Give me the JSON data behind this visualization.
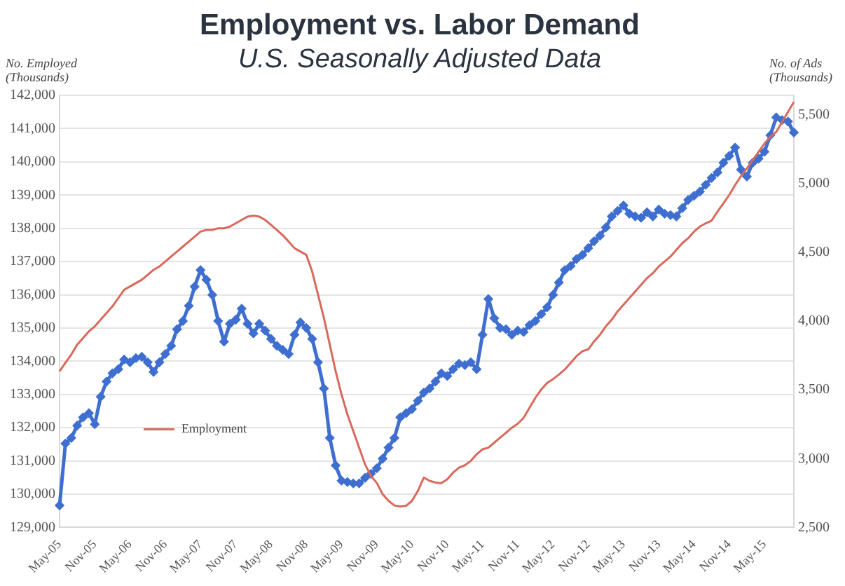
{
  "chart_data": {
    "type": "line",
    "title": "Employment vs. Labor Demand",
    "subtitle": "U.S. Seasonally Adjusted Data",
    "ylabel": "No. Employed (Thousands)",
    "y2label": "No. of Ads (Thousands)",
    "categories": [
      "May-05",
      null,
      null,
      null,
      null,
      null,
      "Nov-05",
      null,
      null,
      null,
      null,
      null,
      "May-06",
      null,
      null,
      null,
      null,
      null,
      "Nov-06",
      null,
      null,
      null,
      null,
      null,
      "May-07",
      null,
      null,
      null,
      null,
      null,
      "Nov-07",
      null,
      null,
      null,
      null,
      null,
      "May-08",
      null,
      null,
      null,
      null,
      null,
      "Nov-08",
      null,
      null,
      null,
      null,
      null,
      "May-09",
      null,
      null,
      null,
      null,
      null,
      "Nov-09",
      null,
      null,
      null,
      null,
      null,
      "May-10",
      null,
      null,
      null,
      null,
      null,
      "Nov-10",
      null,
      null,
      null,
      null,
      null,
      "May-11",
      null,
      null,
      null,
      null,
      null,
      "Nov-11",
      null,
      null,
      null,
      null,
      null,
      "May-12",
      null,
      null,
      null,
      null,
      null,
      "Nov-12",
      null,
      null,
      null,
      null,
      null,
      "May-13",
      null,
      null,
      null,
      null,
      null,
      "Nov-13",
      null,
      null,
      null,
      null,
      null,
      "May-14",
      null,
      null,
      null,
      null,
      null,
      "Nov-14",
      null,
      null,
      null,
      null,
      null,
      "May-15",
      null,
      null,
      null,
      null,
      null
    ],
    "series": [
      {
        "name": "Employment",
        "color": "#d9695b",
        "marker": "none",
        "values": [
          133700,
          133950,
          134200,
          134500,
          134700,
          134900,
          135050,
          135250,
          135450,
          135650,
          135900,
          136150,
          136250,
          136350,
          136450,
          136600,
          136750,
          136850,
          137000,
          137150,
          137300,
          137450,
          137600,
          137750,
          137900,
          137950,
          137950,
          138000,
          138000,
          138050,
          138150,
          138250,
          138350,
          138380,
          138350,
          138250,
          138100,
          137950,
          137790,
          137600,
          137400,
          137300,
          137200,
          136700,
          136000,
          135300,
          134500,
          133700,
          133000,
          132400,
          131900,
          131400,
          130900,
          130550,
          130340,
          130000,
          129800,
          129660,
          129630,
          129650,
          129800,
          130100,
          130500,
          130400,
          130350,
          130330,
          130450,
          130650,
          130800,
          130870,
          131000,
          131200,
          131350,
          131400,
          131550,
          131700,
          131850,
          132000,
          132120,
          132300,
          132600,
          132900,
          133150,
          133350,
          133460,
          133600,
          133750,
          133950,
          134150,
          134300,
          134360,
          134600,
          134800,
          135050,
          135250,
          135500,
          135700,
          135900,
          136100,
          136300,
          136500,
          136650,
          136850,
          137000,
          137150,
          137350,
          137550,
          137700,
          137900,
          138050,
          138150,
          138230,
          138500,
          138750,
          139000,
          139300,
          139570,
          139800,
          140050,
          140300,
          140550,
          140750,
          140900,
          141200,
          141500,
          141800
        ]
      },
      {
        "color": "#3e6fd0",
        "axis": "y2",
        "marker": "diamond",
        "values": [
          2660,
          3110,
          3150,
          3240,
          3300,
          3330,
          3250,
          3450,
          3560,
          3620,
          3650,
          3720,
          3700,
          3730,
          3740,
          3700,
          3630,
          3700,
          3760,
          3820,
          3940,
          4000,
          4110,
          4250,
          4370,
          4300,
          4190,
          4000,
          3850,
          3980,
          4010,
          4090,
          3980,
          3910,
          3980,
          3930,
          3870,
          3820,
          3790,
          3760,
          3900,
          3990,
          3950,
          3870,
          3700,
          3510,
          3150,
          2950,
          2840,
          2830,
          2820,
          2820,
          2860,
          2890,
          2930,
          3000,
          3080,
          3150,
          3300,
          3330,
          3360,
          3420,
          3480,
          3510,
          3560,
          3620,
          3600,
          3650,
          3690,
          3680,
          3700,
          3650,
          3900,
          4160,
          4020,
          3950,
          3940,
          3900,
          3930,
          3920,
          3970,
          4000,
          4050,
          4100,
          4190,
          4280,
          4370,
          4400,
          4450,
          4480,
          4530,
          4580,
          4620,
          4680,
          4760,
          4800,
          4840,
          4780,
          4760,
          4750,
          4790,
          4760,
          4810,
          4780,
          4770,
          4760,
          4820,
          4880,
          4910,
          4940,
          4990,
          5040,
          5080,
          5150,
          5200,
          5260,
          5100,
          5050,
          5150,
          5180,
          5230,
          5350,
          5480,
          5460,
          5450,
          5370
        ]
      }
    ],
    "ylim": [
      129000,
      142000
    ],
    "yticks": [
      {
        "value": 129000,
        "label": "129,000"
      },
      {
        "value": 130000,
        "label": "130,000"
      },
      {
        "value": 131000,
        "label": "131,000"
      },
      {
        "value": 132000,
        "label": "132,000"
      },
      {
        "value": 133000,
        "label": "133,000"
      },
      {
        "value": 134000,
        "label": "134,000"
      },
      {
        "value": 135000,
        "label": "135,000"
      },
      {
        "value": 136000,
        "label": "136,000"
      },
      {
        "value": 137000,
        "label": "137,000"
      },
      {
        "value": 138000,
        "label": "138,000"
      },
      {
        "value": 139000,
        "label": "139,000"
      },
      {
        "value": 140000,
        "label": "140,000"
      },
      {
        "value": 141000,
        "label": "141,000"
      },
      {
        "value": 142000,
        "label": "142,000"
      }
    ],
    "y2lim": [
      2500,
      5640
    ],
    "y2ticks": [
      {
        "value": 2500,
        "label": "2,500"
      },
      {
        "value": 3000,
        "label": "3,000"
      },
      {
        "value": 3500,
        "label": "3,500"
      },
      {
        "value": 4000,
        "label": "4,000"
      },
      {
        "value": 4500,
        "label": "4,500"
      },
      {
        "value": 5000,
        "label": "5,000"
      },
      {
        "value": 5500,
        "label": "5,500"
      }
    ],
    "grid": "y",
    "legend": "bottom left"
  }
}
